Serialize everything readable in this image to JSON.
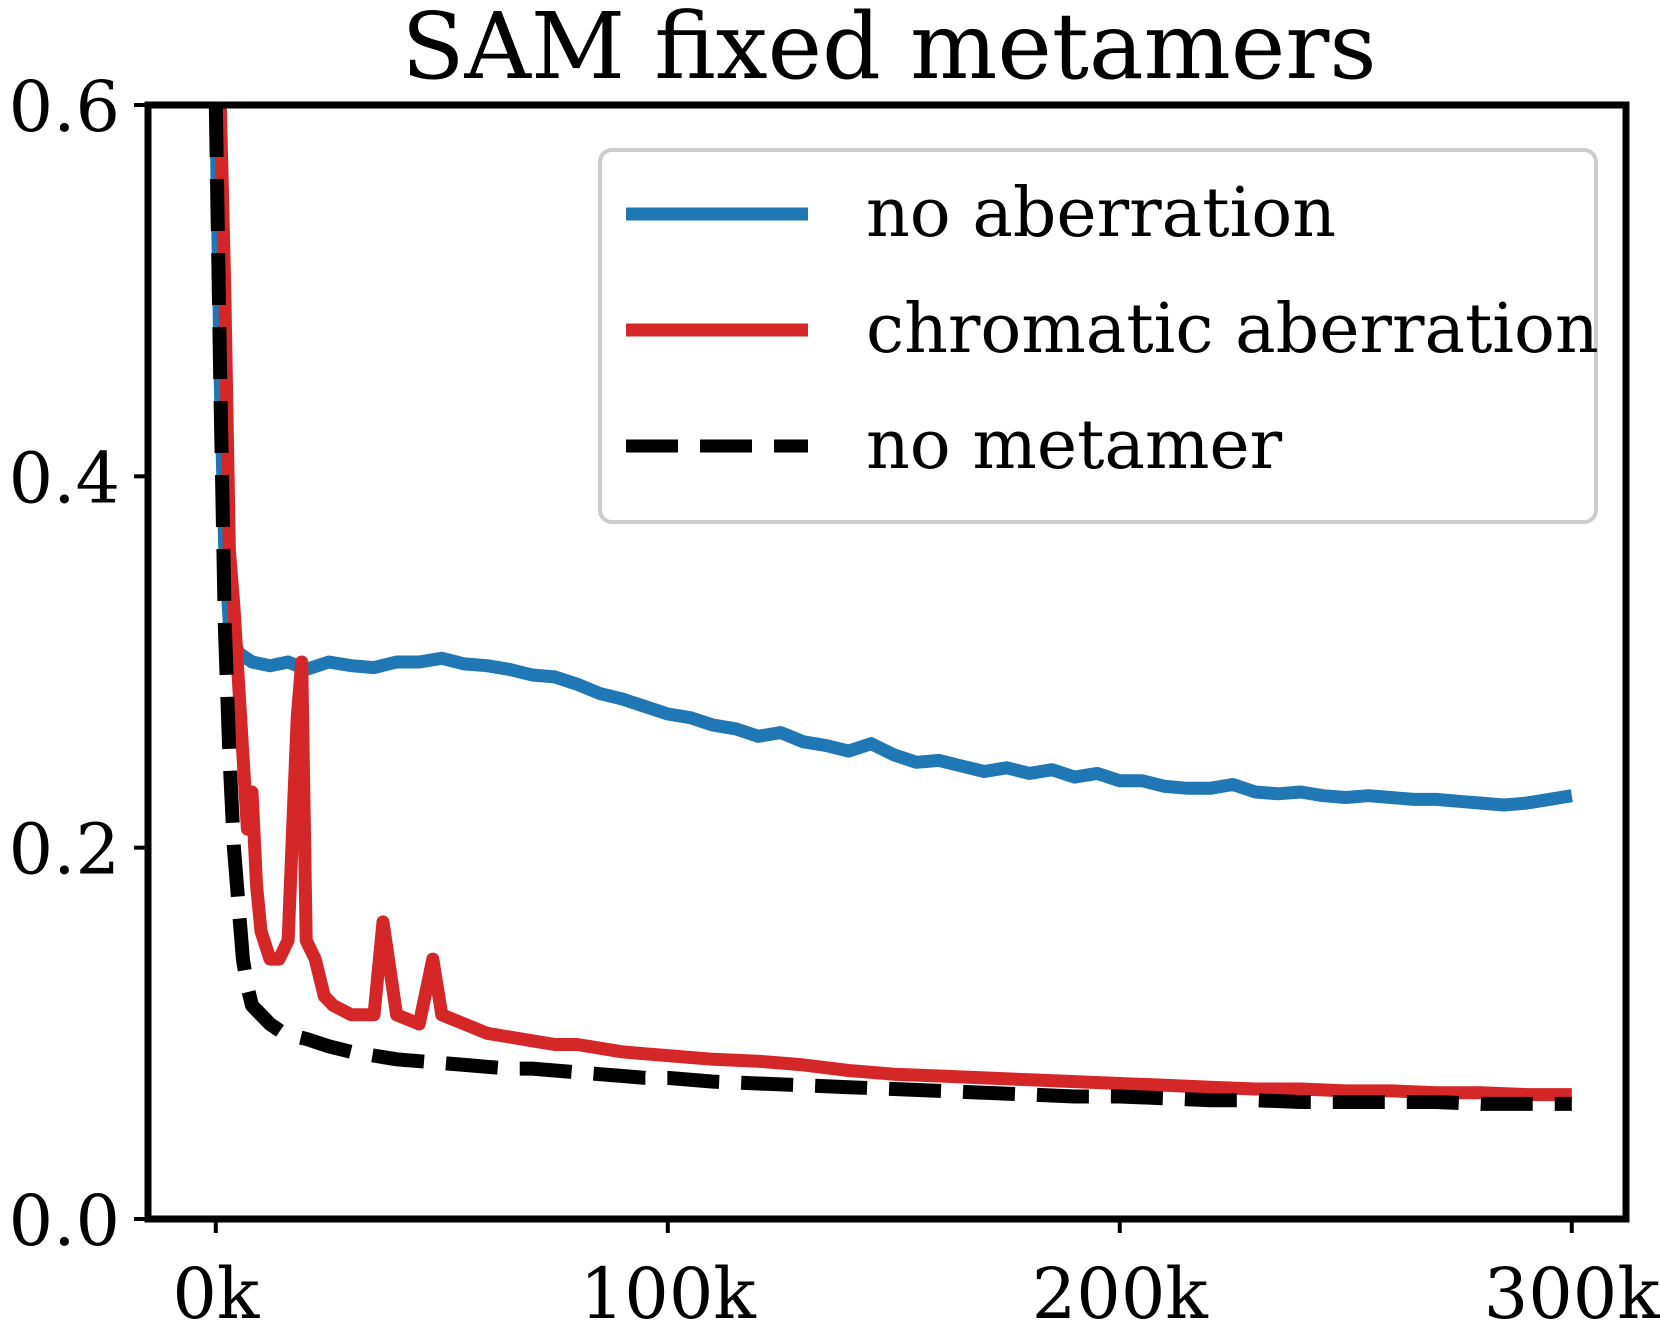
{
  "chart_data": {
    "type": "line",
    "title": "SAM fixed metamers",
    "xlabel": "",
    "ylabel": "",
    "xlim": [
      -15000,
      312000
    ],
    "ylim": [
      0.0,
      0.6
    ],
    "xticks": [
      0,
      100000,
      200000,
      300000
    ],
    "xtick_labels": [
      "0k",
      "100k",
      "200k",
      "300k"
    ],
    "yticks": [
      0.0,
      0.2,
      0.4,
      0.6
    ],
    "ytick_labels": [
      "0.0",
      "0.2",
      "0.4",
      "0.6"
    ],
    "grid": false,
    "legend_position": "top-right",
    "series": [
      {
        "name": "no aberration",
        "color": "#1f77b4",
        "style": "solid",
        "x": [
          0,
          1000,
          2000,
          3000,
          5000,
          8000,
          12000,
          16000,
          20000,
          25000,
          30000,
          35000,
          40000,
          45000,
          50000,
          55000,
          60000,
          65000,
          70000,
          75000,
          80000,
          85000,
          90000,
          95000,
          100000,
          105000,
          110000,
          115000,
          120000,
          125000,
          130000,
          135000,
          140000,
          145000,
          150000,
          155000,
          160000,
          165000,
          170000,
          175000,
          180000,
          185000,
          190000,
          195000,
          200000,
          205000,
          210000,
          215000,
          220000,
          225000,
          230000,
          235000,
          240000,
          245000,
          250000,
          255000,
          260000,
          265000,
          270000,
          275000,
          280000,
          285000,
          290000,
          295000,
          300000
        ],
        "y": [
          0.6,
          0.45,
          0.36,
          0.32,
          0.305,
          0.3,
          0.298,
          0.3,
          0.296,
          0.3,
          0.298,
          0.297,
          0.3,
          0.3,
          0.302,
          0.299,
          0.298,
          0.296,
          0.293,
          0.292,
          0.288,
          0.283,
          0.28,
          0.276,
          0.272,
          0.27,
          0.266,
          0.264,
          0.26,
          0.262,
          0.257,
          0.255,
          0.252,
          0.256,
          0.25,
          0.246,
          0.247,
          0.244,
          0.241,
          0.243,
          0.24,
          0.242,
          0.238,
          0.24,
          0.236,
          0.236,
          0.233,
          0.232,
          0.232,
          0.234,
          0.23,
          0.229,
          0.23,
          0.228,
          0.227,
          0.228,
          0.227,
          0.226,
          0.226,
          0.225,
          0.224,
          0.223,
          0.224,
          0.226,
          0.228
        ]
      },
      {
        "name": "chromatic aberration",
        "color": "#d62728",
        "style": "solid",
        "x": [
          1000,
          1500,
          2000,
          3000,
          4000,
          5000,
          6000,
          7000,
          8000,
          9000,
          10000,
          12000,
          14000,
          16000,
          18000,
          19000,
          20000,
          22000,
          24000,
          26000,
          30000,
          35000,
          37000,
          40000,
          45000,
          48000,
          50000,
          55000,
          60000,
          65000,
          70000,
          75000,
          80000,
          85000,
          90000,
          95000,
          100000,
          110000,
          120000,
          130000,
          140000,
          150000,
          160000,
          170000,
          180000,
          190000,
          200000,
          210000,
          220000,
          230000,
          240000,
          250000,
          260000,
          270000,
          280000,
          290000,
          300000
        ],
        "y": [
          0.6,
          0.55,
          0.5,
          0.36,
          0.33,
          0.29,
          0.25,
          0.21,
          0.23,
          0.18,
          0.155,
          0.14,
          0.14,
          0.15,
          0.27,
          0.3,
          0.15,
          0.14,
          0.12,
          0.115,
          0.11,
          0.11,
          0.16,
          0.11,
          0.105,
          0.14,
          0.11,
          0.105,
          0.1,
          0.098,
          0.096,
          0.094,
          0.094,
          0.092,
          0.09,
          0.089,
          0.088,
          0.086,
          0.085,
          0.083,
          0.08,
          0.078,
          0.077,
          0.076,
          0.075,
          0.074,
          0.073,
          0.072,
          0.071,
          0.07,
          0.07,
          0.069,
          0.069,
          0.068,
          0.068,
          0.067,
          0.067
        ]
      },
      {
        "name": "no metamer",
        "color": "#000000",
        "style": "dashed",
        "x": [
          0,
          1000,
          2000,
          3000,
          4000,
          5000,
          6000,
          7000,
          8000,
          10000,
          12000,
          15000,
          20000,
          25000,
          30000,
          35000,
          40000,
          45000,
          50000,
          55000,
          60000,
          65000,
          70000,
          75000,
          80000,
          85000,
          90000,
          95000,
          100000,
          110000,
          120000,
          130000,
          140000,
          150000,
          160000,
          170000,
          180000,
          190000,
          200000,
          210000,
          220000,
          230000,
          240000,
          250000,
          260000,
          270000,
          280000,
          290000,
          300000
        ],
        "y": [
          0.6,
          0.45,
          0.32,
          0.25,
          0.2,
          0.17,
          0.14,
          0.125,
          0.115,
          0.11,
          0.105,
          0.1,
          0.097,
          0.093,
          0.09,
          0.088,
          0.086,
          0.085,
          0.084,
          0.083,
          0.082,
          0.081,
          0.081,
          0.08,
          0.079,
          0.078,
          0.077,
          0.076,
          0.076,
          0.074,
          0.073,
          0.072,
          0.071,
          0.07,
          0.069,
          0.068,
          0.067,
          0.066,
          0.066,
          0.065,
          0.064,
          0.064,
          0.063,
          0.063,
          0.063,
          0.063,
          0.062,
          0.062,
          0.062
        ]
      }
    ]
  }
}
